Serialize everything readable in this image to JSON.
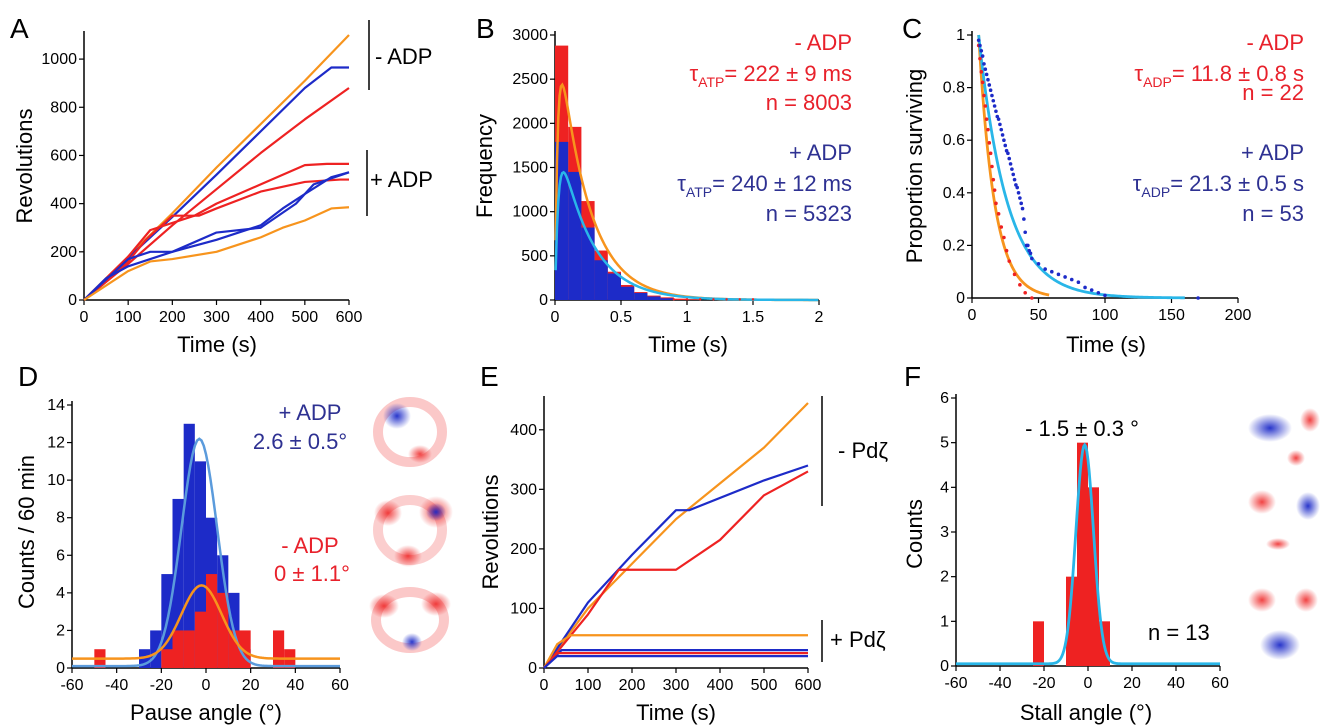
{
  "colors": {
    "red": "#ee2222",
    "blue": "#1d2bc8",
    "orange": "#f7941d",
    "cyan": "#29b6e8",
    "lightblue": "#5b9bdc",
    "red_text": "#e8212b",
    "blue_text": "#2e3192",
    "axis": "#000000"
  },
  "panels": {
    "A": {
      "letter": "A",
      "xlabel": "Time (s)",
      "ylabel": "Revolutions",
      "bracket_minus": "- ADP",
      "bracket_plus": "+ ADP"
    },
    "B": {
      "letter": "B",
      "xlabel": "Time (s)",
      "ylabel": "Frequency",
      "minus_label": "- ADP",
      "minus_tau_sym": "τ",
      "minus_tau_sub": "ATP",
      "minus_tau_val": "= 222 ± 9 ms",
      "minus_n": "n = 8003",
      "plus_label": "+ ADP",
      "plus_tau_sym": "τ",
      "plus_tau_sub": "ATP",
      "plus_tau_val": "= 240 ± 12 ms",
      "plus_n": "n = 5323"
    },
    "C": {
      "letter": "C",
      "xlabel": "Time (s)",
      "ylabel": "Proportion surviving",
      "minus_label": "- ADP",
      "minus_tau_sym": "τ",
      "minus_tau_sub": "ADP",
      "minus_tau_val": "= 11.8 ± 0.8 s",
      "minus_n": "n = 22",
      "plus_label": "+ ADP",
      "plus_tau_sym": "τ",
      "plus_tau_sub": "ADP",
      "plus_tau_val": "= 21.3 ± 0.5 s",
      "plus_n": "n = 53"
    },
    "D": {
      "letter": "D",
      "xlabel": "Pause angle (°)",
      "ylabel": "Counts / 60 min",
      "plus_label": "+ ADP",
      "plus_value": "2.6 ± 0.5°",
      "minus_label": "- ADP",
      "minus_value": "0 ± 1.1°"
    },
    "E": {
      "letter": "E",
      "xlabel": "Time (s)",
      "ylabel": "Revolutions",
      "bracket_minus": "- Pdζ",
      "bracket_plus": "+ Pdζ"
    },
    "F": {
      "letter": "F",
      "xlabel": "Stall angle (°)",
      "ylabel": "Counts",
      "annotation": "- 1.5 ± 0.3 °",
      "n_label": "n = 13"
    }
  },
  "chart_data": [
    {
      "panel": "A",
      "type": "line",
      "xlim": [
        0,
        600
      ],
      "ylim": [
        0,
        1100
      ],
      "xticks": [
        0,
        100,
        200,
        300,
        400,
        500,
        600
      ],
      "yticks": [
        0,
        200,
        400,
        600,
        800,
        1000
      ],
      "series": [
        {
          "color": "orange",
          "x": [
            0,
            100,
            200,
            300,
            400,
            500,
            600
          ],
          "y": [
            0,
            180,
            360,
            550,
            730,
            910,
            1100
          ]
        },
        {
          "color": "blue",
          "x": [
            0,
            100,
            200,
            300,
            400,
            500,
            560,
            600
          ],
          "y": [
            0,
            175,
            345,
            520,
            700,
            880,
            965,
            965
          ]
        },
        {
          "color": "red",
          "x": [
            0,
            100,
            200,
            300,
            400,
            500,
            600
          ],
          "y": [
            0,
            150,
            310,
            460,
            610,
            750,
            880
          ]
        },
        {
          "color": "red",
          "x": [
            0,
            100,
            150,
            250,
            300,
            400,
            500,
            550,
            600
          ],
          "y": [
            0,
            180,
            290,
            350,
            400,
            480,
            560,
            565,
            565
          ]
        },
        {
          "color": "red",
          "x": [
            0,
            100,
            140,
            200,
            260,
            300,
            400,
            500,
            580,
            600
          ],
          "y": [
            0,
            160,
            250,
            350,
            350,
            380,
            450,
            490,
            500,
            500
          ]
        },
        {
          "color": "blue",
          "x": [
            0,
            100,
            150,
            200,
            300,
            350,
            400,
            450,
            500,
            560,
            600
          ],
          "y": [
            0,
            170,
            200,
            200,
            250,
            280,
            310,
            380,
            440,
            510,
            530
          ]
        },
        {
          "color": "blue",
          "x": [
            0,
            50,
            100,
            200,
            300,
            400,
            480,
            520,
            600
          ],
          "y": [
            0,
            90,
            140,
            200,
            280,
            300,
            400,
            480,
            530
          ]
        },
        {
          "color": "orange",
          "x": [
            0,
            100,
            150,
            200,
            300,
            400,
            450,
            500,
            560,
            600
          ],
          "y": [
            0,
            120,
            160,
            170,
            200,
            260,
            300,
            330,
            380,
            385
          ]
        }
      ]
    },
    {
      "panel": "B",
      "type": "bar",
      "xlim": [
        0,
        2
      ],
      "ylim": [
        0,
        3000
      ],
      "xticks": [
        0,
        0.5,
        1,
        1.5,
        2
      ],
      "xtick_labels": [
        "0",
        "0.5",
        "1",
        "1.5",
        "2"
      ],
      "yticks": [
        0,
        500,
        1000,
        1500,
        2000,
        2500,
        3000
      ],
      "bin_width": 0.1,
      "series": [
        {
          "name": "- ADP",
          "color": "red",
          "bin_starts": [
            0,
            0.1,
            0.2,
            0.3,
            0.4,
            0.5,
            0.6,
            0.7,
            0.8,
            0.9,
            1.0
          ],
          "values": [
            2880,
            1960,
            1120,
            560,
            320,
            170,
            90,
            50,
            30,
            15,
            8
          ]
        },
        {
          "name": "+ ADP",
          "color": "blue",
          "bin_starts": [
            0,
            0.1,
            0.2,
            0.3,
            0.4,
            0.5,
            0.6,
            0.7,
            0.8
          ],
          "values": [
            1790,
            1450,
            820,
            450,
            300,
            150,
            80,
            40,
            20
          ]
        }
      ],
      "fits": [
        {
          "color": "orange",
          "amplitude": 3400,
          "tau": 0.222,
          "rise": 0.02
        },
        {
          "color": "cyan",
          "amplitude": 2100,
          "tau": 0.24,
          "rise": 0.025
        }
      ]
    },
    {
      "panel": "C",
      "type": "scatter",
      "xlim": [
        0,
        200
      ],
      "ylim": [
        0,
        1
      ],
      "xticks": [
        0,
        50,
        100,
        150,
        200
      ],
      "yticks": [
        0,
        0.2,
        0.4,
        0.6,
        0.8,
        1
      ],
      "ytick_labels": [
        "0",
        "0.2",
        "0.4",
        "0.6",
        "0.8",
        "1"
      ],
      "series": [
        {
          "name": "- ADP",
          "color": "red",
          "x": [
            5,
            6,
            7,
            8,
            9,
            10,
            11,
            12,
            13,
            14,
            15,
            16,
            17,
            18,
            20,
            22,
            24,
            26,
            28,
            32,
            36,
            40,
            45
          ],
          "y": [
            0.96,
            0.91,
            0.86,
            0.82,
            0.77,
            0.73,
            0.68,
            0.64,
            0.59,
            0.55,
            0.5,
            0.45,
            0.41,
            0.36,
            0.32,
            0.27,
            0.23,
            0.18,
            0.14,
            0.09,
            0.05,
            0.02,
            0.0
          ]
        },
        {
          "name": "+ ADP",
          "color": "blue",
          "x": [
            5,
            6,
            7,
            8,
            9,
            10,
            11,
            12,
            13,
            14,
            15,
            16,
            17,
            18,
            19,
            20,
            21,
            22,
            23,
            24,
            25,
            26,
            27,
            28,
            29,
            30,
            31,
            32,
            33,
            34,
            35,
            36,
            37,
            38,
            39,
            40,
            41,
            42,
            43,
            44,
            45,
            50,
            55,
            60,
            65,
            70,
            75,
            80,
            85,
            90,
            95,
            100,
            170
          ],
          "y": [
            0.98,
            0.96,
            0.94,
            0.92,
            0.89,
            0.87,
            0.85,
            0.83,
            0.81,
            0.79,
            0.77,
            0.75,
            0.73,
            0.71,
            0.69,
            0.68,
            0.66,
            0.64,
            0.62,
            0.6,
            0.58,
            0.56,
            0.55,
            0.53,
            0.51,
            0.49,
            0.47,
            0.45,
            0.43,
            0.42,
            0.4,
            0.38,
            0.36,
            0.34,
            0.3,
            0.25,
            0.2,
            0.2,
            0.18,
            0.17,
            0.15,
            0.13,
            0.11,
            0.1,
            0.09,
            0.08,
            0.07,
            0.06,
            0.04,
            0.03,
            0.02,
            0.01,
            0.0
          ]
        }
      ],
      "fits": [
        {
          "color": "orange",
          "tau": 11.8,
          "t0": 5,
          "x_end": 58
        },
        {
          "color": "cyan",
          "tau": 21.3,
          "t0": 5,
          "x_end": 160
        }
      ]
    },
    {
      "panel": "D",
      "type": "bar",
      "xlim": [
        -60,
        60
      ],
      "ylim": [
        0,
        14
      ],
      "xticks": [
        -60,
        -40,
        -20,
        0,
        20,
        40,
        60
      ],
      "yticks": [
        0,
        2,
        4,
        6,
        8,
        10,
        12,
        14
      ],
      "bin_width": 5,
      "series": [
        {
          "name": "+ ADP",
          "color": "blue",
          "bin_starts": [
            -30,
            -25,
            -20,
            -15,
            -10,
            -5,
            0,
            5,
            10,
            15
          ],
          "values": [
            1,
            2,
            5,
            9,
            13,
            11,
            8,
            6,
            4,
            1
          ]
        },
        {
          "name": "- ADP",
          "color": "red",
          "bin_starts": [
            -50,
            -25,
            -20,
            -15,
            -10,
            -5,
            0,
            5,
            10,
            15,
            30,
            35
          ],
          "values": [
            1,
            0,
            1,
            2,
            2,
            3,
            5,
            4,
            2,
            2,
            2,
            1
          ]
        }
      ],
      "fits": [
        {
          "color": "lightblue",
          "amplitude": 12.1,
          "mean": -3,
          "sigma": 8,
          "baseline": 0.1
        },
        {
          "color": "orange",
          "amplitude": 3.9,
          "mean": -2,
          "sigma": 9,
          "baseline": 0.5
        }
      ]
    },
    {
      "panel": "E",
      "type": "line",
      "xlim": [
        0,
        600
      ],
      "ylim": [
        0,
        450
      ],
      "xticks": [
        0,
        100,
        200,
        300,
        400,
        500,
        600
      ],
      "yticks": [
        0,
        100,
        200,
        300,
        400
      ],
      "series": [
        {
          "color": "orange",
          "x": [
            0,
            100,
            200,
            300,
            400,
            500,
            600
          ],
          "y": [
            0,
            100,
            175,
            250,
            310,
            370,
            445
          ]
        },
        {
          "color": "blue",
          "x": [
            0,
            100,
            200,
            300,
            330,
            500,
            600
          ],
          "y": [
            0,
            110,
            190,
            265,
            265,
            315,
            340
          ]
        },
        {
          "color": "red",
          "x": [
            0,
            100,
            170,
            300,
            400,
            500,
            600
          ],
          "y": [
            0,
            90,
            165,
            165,
            215,
            290,
            330
          ]
        },
        {
          "color": "orange",
          "x": [
            0,
            30,
            60,
            600
          ],
          "y": [
            0,
            40,
            55,
            55
          ]
        },
        {
          "color": "blue",
          "x": [
            0,
            40,
            600
          ],
          "y": [
            0,
            30,
            30
          ]
        },
        {
          "color": "red",
          "x": [
            0,
            30,
            600
          ],
          "y": [
            0,
            25,
            25
          ]
        },
        {
          "color": "blue",
          "x": [
            0,
            30,
            600
          ],
          "y": [
            0,
            20,
            20
          ]
        }
      ]
    },
    {
      "panel": "F",
      "type": "bar",
      "xlim": [
        -60,
        60
      ],
      "ylim": [
        0,
        6
      ],
      "xticks": [
        -60,
        -40,
        -20,
        0,
        20,
        40,
        60
      ],
      "yticks": [
        0,
        1,
        2,
        3,
        4,
        5,
        6
      ],
      "bin_width": 5,
      "series": [
        {
          "name": "",
          "color": "red",
          "bin_starts": [
            -25,
            -10,
            -5,
            0,
            5
          ],
          "values": [
            1,
            2,
            5,
            4,
            1
          ]
        }
      ],
      "fits": [
        {
          "color": "cyan",
          "amplitude": 4.9,
          "mean": -1.5,
          "sigma": 4,
          "baseline": 0.05
        }
      ]
    }
  ]
}
